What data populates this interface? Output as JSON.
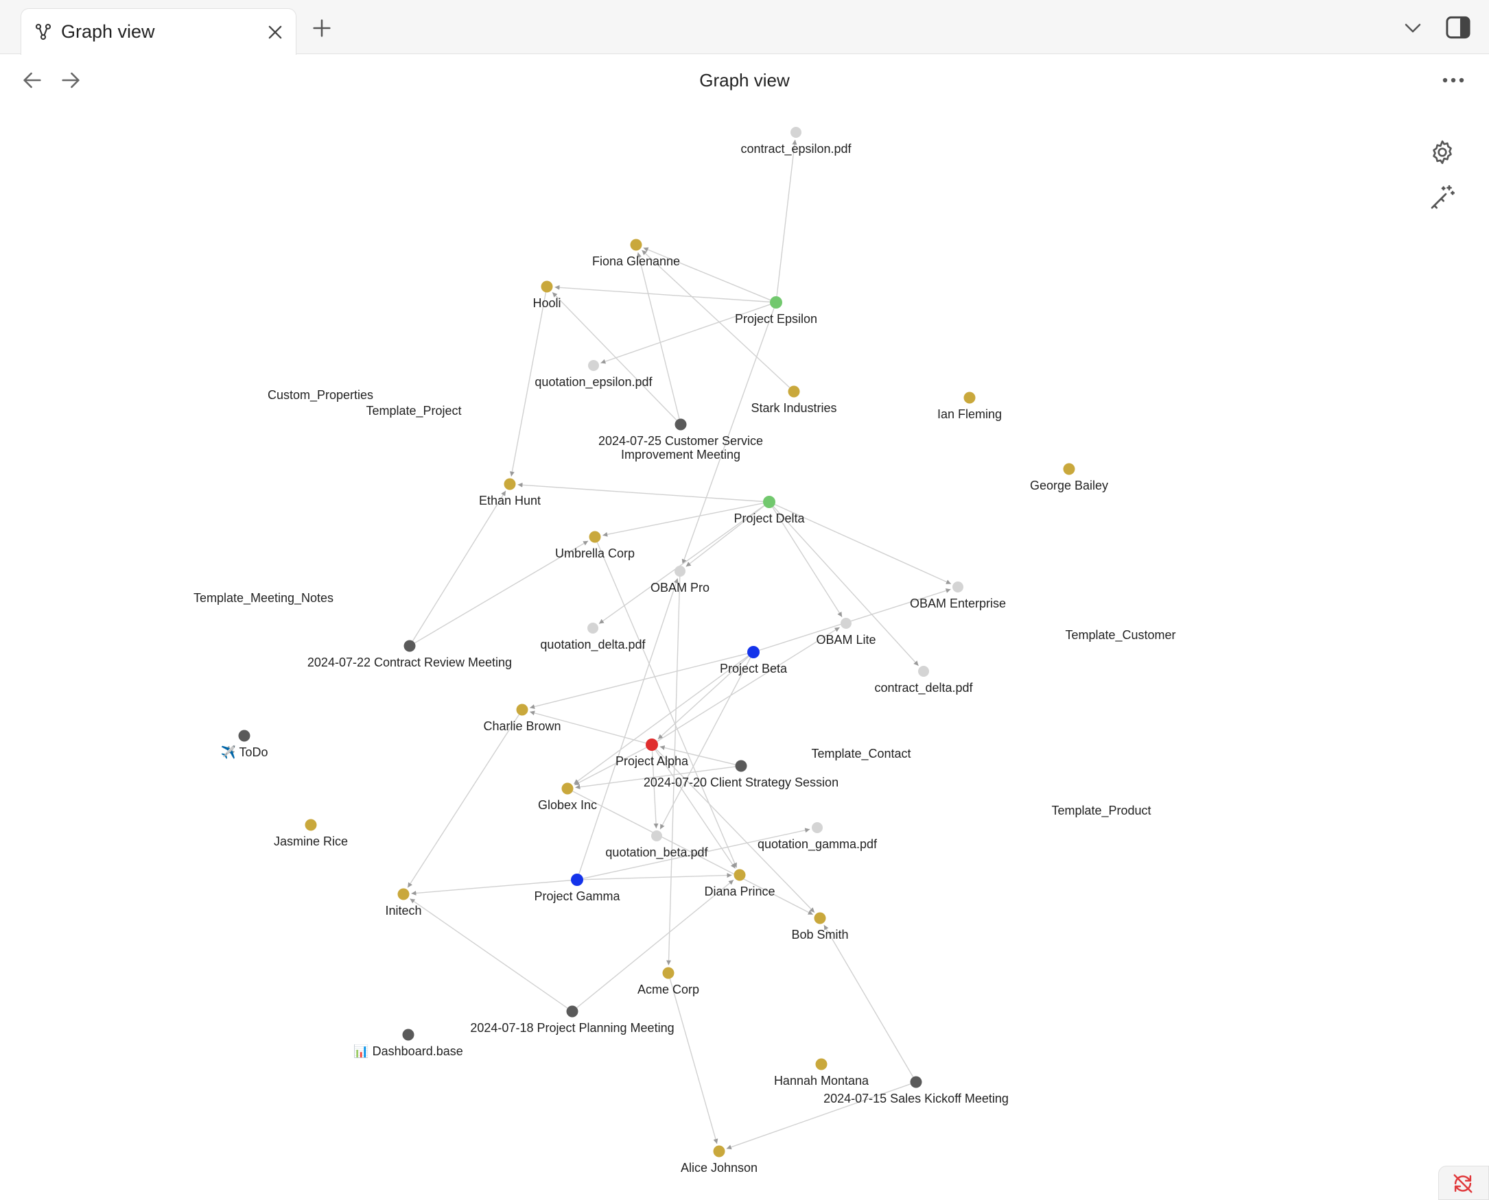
{
  "tab": {
    "label": "Graph view",
    "icon": "graph-icon"
  },
  "header": {
    "title": "Graph view"
  },
  "icons": {
    "close": "close-icon",
    "new_tab": "plus-icon",
    "tab_list": "chevron-down-icon",
    "sidebar": "sidebar-toggle-icon",
    "back": "arrow-left-icon",
    "forward": "arrow-right-icon",
    "more": "more-horizontal-icon",
    "settings": "gear-icon",
    "animate": "magic-wand-icon",
    "sync": "sync-off-icon"
  },
  "colors": {
    "person": "#c9a83c",
    "project_green": "#72c86e",
    "project_blue": "#1433ea",
    "project_alpha": "#e02e2e",
    "meeting": "#5a5a5a",
    "attachment": "#d4d4d4",
    "edge": "#d0d0d0",
    "arrow": "#999999",
    "sync_error": "#e0383b"
  },
  "graph": {
    "nodes": [
      {
        "id": "contract_epsilon",
        "label": "contract_epsilon.pdf",
        "kind": "attachment"
      },
      {
        "id": "fiona",
        "label": "Fiona Glenanne",
        "kind": "person"
      },
      {
        "id": "hooli",
        "label": "Hooli",
        "kind": "person"
      },
      {
        "id": "project_epsilon",
        "label": "Project Epsilon",
        "kind": "project_green"
      },
      {
        "id": "quotation_epsilon",
        "label": "quotation_epsilon.pdf",
        "kind": "attachment"
      },
      {
        "id": "stark",
        "label": "Stark Industries",
        "kind": "person"
      },
      {
        "id": "ian",
        "label": "Ian Fleming",
        "kind": "person"
      },
      {
        "id": "custom_properties",
        "label": "Custom_Properties",
        "kind": "template"
      },
      {
        "id": "template_project",
        "label": "Template_Project",
        "kind": "template"
      },
      {
        "id": "meeting_0725",
        "label": "2024-07-25 Customer Service",
        "label2": "Improvement Meeting",
        "kind": "meeting"
      },
      {
        "id": "george",
        "label": "George Bailey",
        "kind": "person"
      },
      {
        "id": "ethan",
        "label": "Ethan Hunt",
        "kind": "person"
      },
      {
        "id": "project_delta",
        "label": "Project Delta",
        "kind": "project_green"
      },
      {
        "id": "umbrella",
        "label": "Umbrella Corp",
        "kind": "person"
      },
      {
        "id": "obam_pro",
        "label": "OBAM Pro",
        "kind": "attachment"
      },
      {
        "id": "obam_enterprise",
        "label": "OBAM Enterprise",
        "kind": "attachment"
      },
      {
        "id": "template_meeting_notes",
        "label": "Template_Meeting_Notes",
        "kind": "template"
      },
      {
        "id": "quotation_delta",
        "label": "quotation_delta.pdf",
        "kind": "attachment"
      },
      {
        "id": "obam_lite",
        "label": "OBAM Lite",
        "kind": "attachment"
      },
      {
        "id": "template_customer",
        "label": "Template_Customer",
        "kind": "template"
      },
      {
        "id": "meeting_0722",
        "label": "2024-07-22 Contract Review Meeting",
        "kind": "meeting"
      },
      {
        "id": "project_beta",
        "label": "Project Beta",
        "kind": "project_blue"
      },
      {
        "id": "contract_delta",
        "label": "contract_delta.pdf",
        "kind": "attachment"
      },
      {
        "id": "charlie",
        "label": "Charlie Brown",
        "kind": "person"
      },
      {
        "id": "todo",
        "label": "✈️ ToDo",
        "kind": "meeting"
      },
      {
        "id": "project_alpha",
        "label": "Project Alpha",
        "kind": "project_alpha"
      },
      {
        "id": "template_contact",
        "label": "Template_Contact",
        "kind": "template"
      },
      {
        "id": "meeting_0720",
        "label": "2024-07-20 Client Strategy Session",
        "kind": "meeting"
      },
      {
        "id": "globex",
        "label": "Globex Inc",
        "kind": "person"
      },
      {
        "id": "template_product",
        "label": "Template_Product",
        "kind": "template"
      },
      {
        "id": "jasmine",
        "label": "Jasmine Rice",
        "kind": "person"
      },
      {
        "id": "quotation_gamma",
        "label": "quotation_gamma.pdf",
        "kind": "attachment"
      },
      {
        "id": "quotation_beta",
        "label": "quotation_beta.pdf",
        "kind": "attachment"
      },
      {
        "id": "project_gamma",
        "label": "Project Gamma",
        "kind": "project_blue"
      },
      {
        "id": "diana",
        "label": "Diana Prince",
        "kind": "person"
      },
      {
        "id": "initech",
        "label": "Initech",
        "kind": "person"
      },
      {
        "id": "bob",
        "label": "Bob Smith",
        "kind": "person"
      },
      {
        "id": "acme",
        "label": "Acme Corp",
        "kind": "person"
      },
      {
        "id": "meeting_0718",
        "label": "2024-07-18 Project Planning Meeting",
        "kind": "meeting"
      },
      {
        "id": "dashboard",
        "label": "📊 Dashboard.base",
        "kind": "meeting"
      },
      {
        "id": "hannah",
        "label": "Hannah Montana",
        "kind": "person"
      },
      {
        "id": "meeting_0715",
        "label": "2024-07-15 Sales Kickoff Meeting",
        "kind": "meeting"
      },
      {
        "id": "alice",
        "label": "Alice Johnson",
        "kind": "person"
      }
    ],
    "edges": [
      [
        "project_epsilon",
        "contract_epsilon"
      ],
      [
        "project_epsilon",
        "fiona"
      ],
      [
        "project_epsilon",
        "hooli"
      ],
      [
        "project_epsilon",
        "quotation_epsilon"
      ],
      [
        "project_epsilon",
        "obam_pro"
      ],
      [
        "stark",
        "fiona"
      ],
      [
        "meeting_0725",
        "fiona"
      ],
      [
        "meeting_0725",
        "hooli"
      ],
      [
        "hooli",
        "ethan"
      ],
      [
        "project_delta",
        "ethan"
      ],
      [
        "project_delta",
        "umbrella"
      ],
      [
        "project_delta",
        "obam_pro"
      ],
      [
        "project_delta",
        "obam_lite"
      ],
      [
        "project_delta",
        "obam_enterprise"
      ],
      [
        "project_delta",
        "contract_delta"
      ],
      [
        "project_delta",
        "quotation_delta"
      ],
      [
        "meeting_0722",
        "ethan"
      ],
      [
        "meeting_0722",
        "umbrella"
      ],
      [
        "project_beta",
        "charlie"
      ],
      [
        "project_beta",
        "obam_enterprise"
      ],
      [
        "project_beta",
        "project_alpha"
      ],
      [
        "project_beta",
        "globex"
      ],
      [
        "project_beta",
        "quotation_beta"
      ],
      [
        "project_alpha",
        "charlie"
      ],
      [
        "project_alpha",
        "globex"
      ],
      [
        "project_alpha",
        "obam_lite"
      ],
      [
        "project_alpha",
        "quotation_beta"
      ],
      [
        "project_alpha",
        "diana"
      ],
      [
        "project_alpha",
        "bob"
      ],
      [
        "meeting_0720",
        "globex"
      ],
      [
        "meeting_0720",
        "project_alpha"
      ],
      [
        "umbrella",
        "diana"
      ],
      [
        "obam_pro",
        "acme"
      ],
      [
        "globex",
        "bob"
      ],
      [
        "project_gamma",
        "initech"
      ],
      [
        "project_gamma",
        "diana"
      ],
      [
        "project_gamma",
        "quotation_gamma"
      ],
      [
        "project_gamma",
        "obam_pro"
      ],
      [
        "charlie",
        "initech"
      ],
      [
        "meeting_0718",
        "initech"
      ],
      [
        "meeting_0718",
        "diana"
      ],
      [
        "meeting_0715",
        "bob"
      ],
      [
        "meeting_0715",
        "alice"
      ],
      [
        "acme",
        "alice"
      ]
    ]
  }
}
